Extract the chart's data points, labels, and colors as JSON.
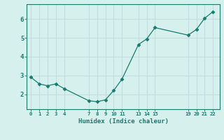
{
  "x": [
    0,
    1,
    2,
    3,
    4,
    7,
    8,
    9,
    10,
    11,
    13,
    14,
    15,
    19,
    20,
    21,
    22
  ],
  "y": [
    2.9,
    2.55,
    2.45,
    2.55,
    2.3,
    1.65,
    1.6,
    1.7,
    2.2,
    2.8,
    4.65,
    4.95,
    5.55,
    5.15,
    5.45,
    6.05,
    6.4
  ],
  "xticks": [
    0,
    1,
    2,
    3,
    4,
    7,
    8,
    9,
    10,
    11,
    13,
    14,
    15,
    19,
    20,
    21,
    22
  ],
  "xtick_labels": [
    "0",
    "1",
    "2",
    "3",
    "4",
    "7",
    "8",
    "9",
    "10",
    "11",
    "13",
    "14",
    "15",
    "19",
    "20",
    "21",
    "22"
  ],
  "yticks": [
    2,
    3,
    4,
    5,
    6
  ],
  "xlabel": "Humidex (Indice chaleur)",
  "ylim": [
    1.2,
    6.8
  ],
  "xlim": [
    -0.5,
    22.8
  ],
  "line_color": "#1a7a6e",
  "bg_color": "#d6f0ee",
  "grid_color": "#c0dedd",
  "title": ""
}
